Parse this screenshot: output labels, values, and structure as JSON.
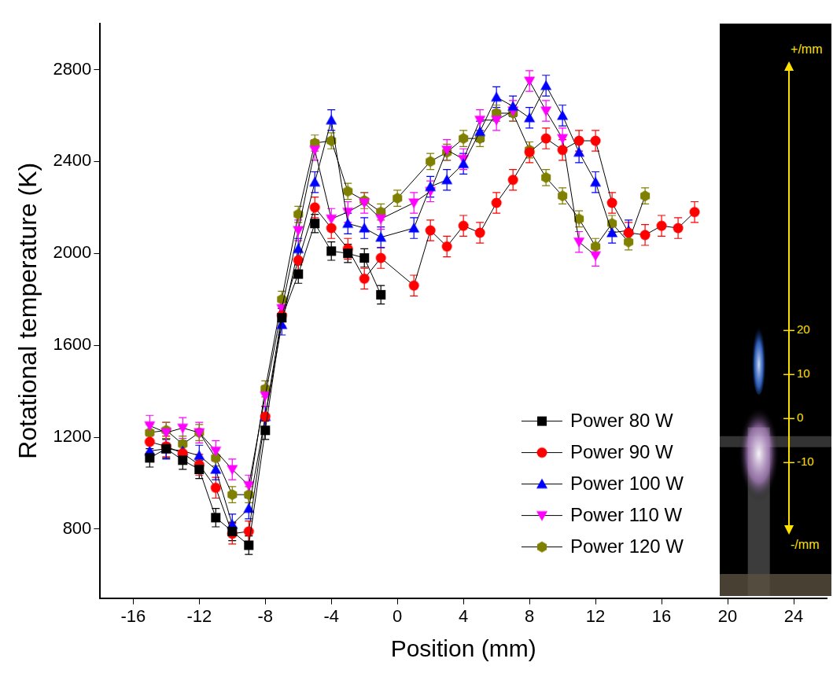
{
  "chart_data": {
    "type": "line",
    "x_label": "Position (mm)",
    "y_label": "Rotational temperature (K)",
    "xlim": [
      -18,
      26
    ],
    "xticks": [
      -16,
      -12,
      -8,
      -4,
      0,
      4,
      8,
      12,
      16,
      20,
      24
    ],
    "ylim": [
      500,
      3000
    ],
    "yticks": [
      800,
      1200,
      1600,
      2000,
      2400,
      2800
    ],
    "grid": false,
    "legend": "lower right",
    "series": [
      {
        "name": "Power 80 W",
        "color": "#000000",
        "marker": "square",
        "x": [
          -15,
          -14,
          -13,
          -12,
          -11,
          -10,
          -9,
          -8,
          -7,
          -6,
          -5,
          -4,
          -3,
          -2,
          -1
        ],
        "values": [
          1110,
          1150,
          1100,
          1060,
          850,
          790,
          730,
          1230,
          1720,
          1910,
          2130,
          2010,
          2000,
          1980,
          1820
        ],
        "errors": [
          40,
          40,
          40,
          40,
          40,
          40,
          40,
          40,
          40,
          40,
          40,
          40,
          40,
          40,
          40
        ]
      },
      {
        "name": "Power 90 W",
        "color": "#ff0000",
        "marker": "circle",
        "x": [
          -15,
          -14,
          -13,
          -12,
          -11,
          -10,
          -9,
          -8,
          -7,
          -6,
          -5,
          -4,
          -3,
          -2,
          -1,
          1,
          2,
          3,
          4,
          5,
          6,
          7,
          8,
          9,
          10,
          11,
          12,
          13,
          14,
          15,
          16,
          17,
          18
        ],
        "values": [
          1180,
          1160,
          1130,
          1080,
          980,
          780,
          790,
          1290,
          1730,
          1970,
          2200,
          2110,
          2020,
          1890,
          1980,
          1860,
          2100,
          2030,
          2120,
          2090,
          2220,
          2320,
          2440,
          2500,
          2450,
          2490,
          2490,
          2220,
          2090,
          2080,
          2120,
          2110,
          2180
        ],
        "errors": [
          45,
          45,
          45,
          45,
          45,
          45,
          45,
          45,
          45,
          45,
          45,
          45,
          45,
          45,
          45,
          45,
          45,
          45,
          45,
          45,
          45,
          45,
          45,
          45,
          45,
          45,
          45,
          45,
          45,
          45,
          45,
          45,
          45
        ]
      },
      {
        "name": "Power 100 W",
        "color": "#0000ff",
        "marker": "triangle-up",
        "x": [
          -15,
          -14,
          -13,
          -12,
          -11,
          -10,
          -9,
          -8,
          -7,
          -6,
          -5,
          -4,
          -3,
          -2,
          -1,
          1,
          2,
          3,
          4,
          5,
          6,
          7,
          8,
          9,
          10,
          11,
          12,
          13,
          14
        ],
        "values": [
          1140,
          1150,
          1140,
          1120,
          1060,
          820,
          890,
          1290,
          1690,
          2020,
          2310,
          2580,
          2130,
          2110,
          2070,
          2110,
          2290,
          2320,
          2390,
          2530,
          2680,
          2640,
          2590,
          2730,
          2600,
          2440,
          2310,
          2090,
          2100
        ],
        "errors": [
          45,
          45,
          45,
          45,
          45,
          45,
          45,
          45,
          45,
          45,
          45,
          45,
          45,
          45,
          45,
          45,
          45,
          45,
          45,
          45,
          45,
          45,
          45,
          45,
          45,
          45,
          45,
          45,
          45
        ]
      },
      {
        "name": "Power 110 W",
        "color": "#ff00ff",
        "marker": "triangle-down",
        "x": [
          -15,
          -14,
          -13,
          -12,
          -11,
          -10,
          -9,
          -8,
          -7,
          -6,
          -5,
          -4,
          -3,
          -2,
          -1,
          1,
          2,
          3,
          4,
          5,
          6,
          7,
          8,
          9,
          10,
          11,
          12
        ],
        "values": [
          1250,
          1220,
          1240,
          1220,
          1140,
          1060,
          990,
          1380,
          1760,
          2100,
          2450,
          2150,
          2180,
          2220,
          2150,
          2220,
          2270,
          2450,
          2410,
          2580,
          2580,
          2620,
          2750,
          2620,
          2500,
          2050,
          1990
        ],
        "errors": [
          45,
          45,
          45,
          45,
          45,
          45,
          45,
          45,
          45,
          45,
          45,
          45,
          45,
          45,
          45,
          45,
          45,
          45,
          45,
          45,
          45,
          45,
          45,
          45,
          45,
          45,
          45
        ]
      },
      {
        "name": "Power 120 W",
        "color": "#808000",
        "marker": "hexagon",
        "x": [
          -15,
          -14,
          -13,
          -12,
          -11,
          -10,
          -9,
          -8,
          -7,
          -6,
          -5,
          -4,
          -3,
          -2,
          -1,
          0,
          2,
          3,
          4,
          5,
          6,
          7,
          8,
          9,
          10,
          11,
          12,
          13,
          14,
          15
        ],
        "values": [
          1220,
          1230,
          1170,
          1220,
          1110,
          950,
          950,
          1410,
          1800,
          2170,
          2480,
          2490,
          2270,
          2230,
          2180,
          2240,
          2400,
          2440,
          2500,
          2500,
          2610,
          2610,
          2450,
          2330,
          2250,
          2150,
          2030,
          2130,
          2050,
          2250
        ],
        "errors": [
          35,
          35,
          35,
          35,
          35,
          35,
          35,
          35,
          35,
          35,
          35,
          35,
          35,
          35,
          35,
          35,
          35,
          35,
          35,
          35,
          35,
          35,
          35,
          35,
          35,
          35,
          35,
          35,
          35,
          35
        ]
      }
    ],
    "inset": {
      "top_label": "+/mm",
      "bottom_label": "-/mm",
      "ticks": [
        20,
        10,
        0,
        -10
      ]
    }
  }
}
